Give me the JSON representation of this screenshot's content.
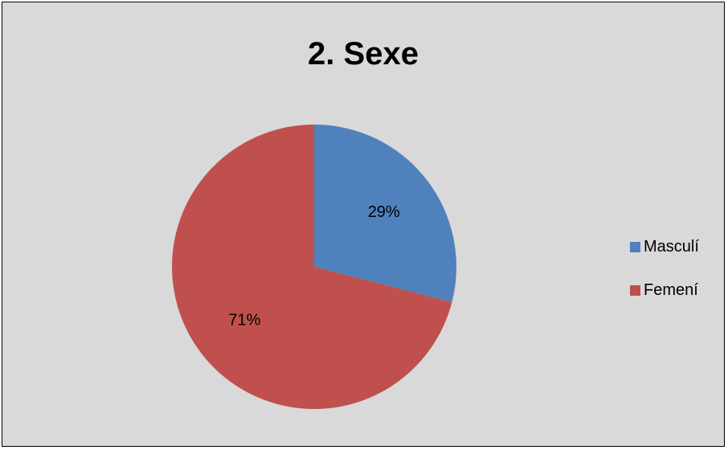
{
  "chart_data": {
    "type": "pie",
    "title": "2. Sexe",
    "categories": [
      "Masculí",
      "Femení"
    ],
    "values": [
      29,
      71
    ],
    "data_labels": [
      "29%",
      "71%"
    ],
    "colors": [
      "#4f81bd",
      "#c0504d"
    ],
    "legend_position": "right",
    "background": "#d9d9d9"
  }
}
